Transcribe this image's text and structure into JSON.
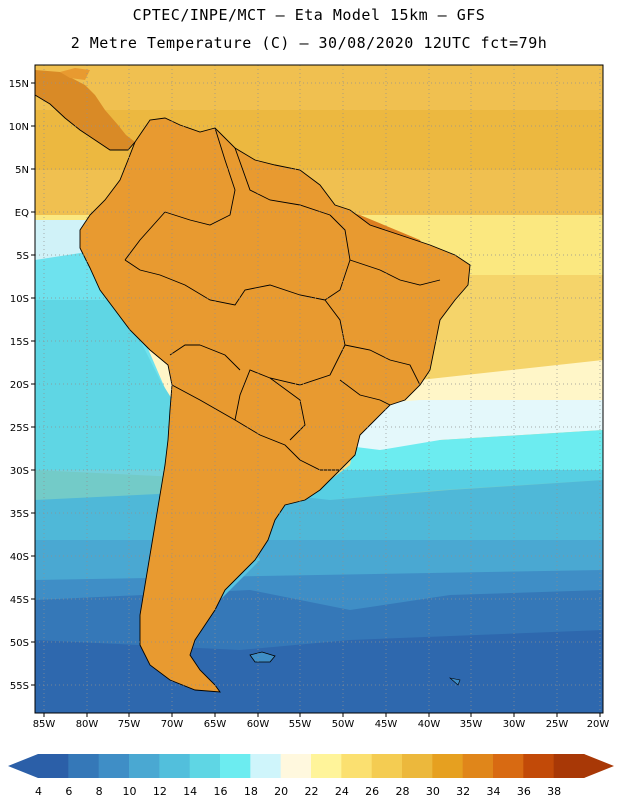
{
  "header": {
    "line1": "CPTEC/INPE/MCT –  Eta Model 15km – GFS",
    "line2": "2 Metre Temperature (C) – 30/08/2020 12UTC fct=79h"
  },
  "map": {
    "lat_labels": [
      "15N",
      "10N",
      "5N",
      "EQ",
      "5S",
      "10S",
      "15S",
      "20S",
      "25S",
      "30S",
      "35S",
      "40S",
      "45S",
      "50S",
      "55S"
    ],
    "lon_labels": [
      "85W",
      "80W",
      "75W",
      "70W",
      "65W",
      "60W",
      "55W",
      "50W",
      "45W",
      "40W",
      "35W",
      "30W",
      "25W",
      "20W"
    ]
  },
  "colorbar": {
    "labels": [
      "4",
      "6",
      "8",
      "10",
      "12",
      "14",
      "16",
      "18",
      "20",
      "22",
      "24",
      "26",
      "28",
      "30",
      "32",
      "34",
      "36",
      "38"
    ],
    "colors": [
      "#2b5fa8",
      "#3578b8",
      "#3f8ec6",
      "#4aa8d2",
      "#52bfdc",
      "#5fd6e4",
      "#6cecf0",
      "#cff5fb",
      "#fff8de",
      "#fff49a",
      "#fbe070",
      "#f4cc52",
      "#ecb83c",
      "#e6a020",
      "#e0861a",
      "#d86a12",
      "#c24a08",
      "#a83806"
    ]
  }
}
